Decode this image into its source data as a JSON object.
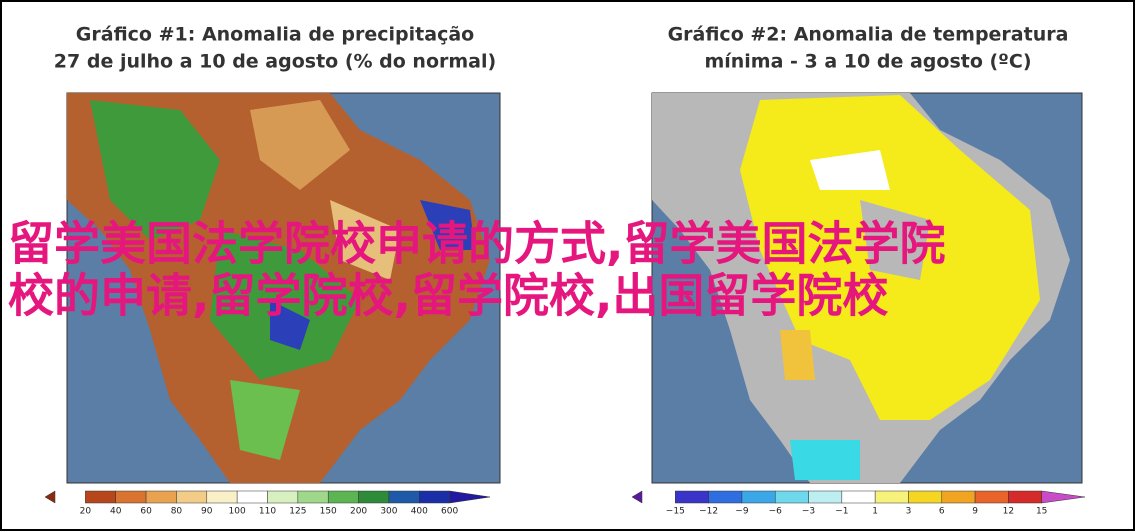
{
  "panels": [
    {
      "title_lines": [
        "Gráfico #1: Anomalia de precipitação",
        "27 de julho a 10 de agosto (% do normal)"
      ],
      "scale_labels": [
        "20",
        "40",
        "60",
        "80",
        "90",
        "100",
        "110",
        "125",
        "150",
        "200",
        "300",
        "400",
        "600"
      ]
    },
    {
      "title_lines": [
        "Gráfico #2: Anomalia de temperatura",
        "mínima - 3 a 10 de agosto (ºC)"
      ],
      "scale_labels": [
        "−15",
        "−12",
        "−9",
        "−6",
        "−3",
        "−1",
        "1",
        "3",
        "6",
        "9",
        "12",
        "15"
      ]
    }
  ],
  "overlay_lines": [
    "留学美国法学院校申请的方式,留学美国法学院",
    "校的申请,留学院校,留学院校,出国留学院校"
  ]
}
